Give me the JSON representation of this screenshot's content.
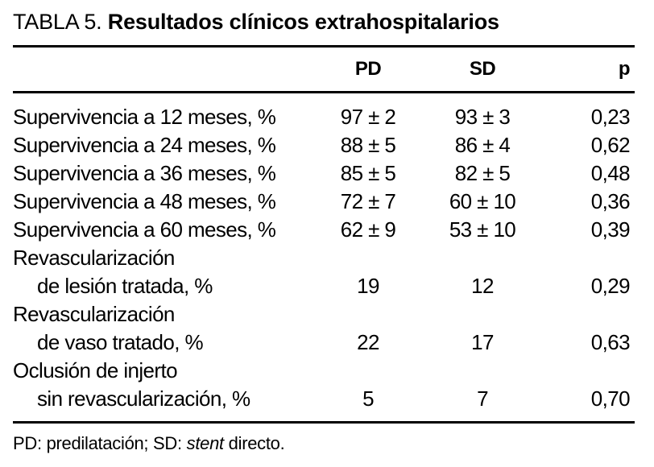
{
  "title": {
    "prefix": "TABLA 5. ",
    "bold_text": "Resultados clínicos extrahospitalarios"
  },
  "table": {
    "columns": {
      "pd": "PD",
      "sd": "SD",
      "p": "p"
    },
    "rows": [
      {
        "label": "Supervivencia a 12 meses, %",
        "indent": false,
        "pd": "97 ± 2",
        "sd": "93 ± 3",
        "p": "0,23"
      },
      {
        "label": "Supervivencia a 24 meses, %",
        "indent": false,
        "pd": "88 ± 5",
        "sd": "86 ± 4",
        "p": "0,62"
      },
      {
        "label": "Supervivencia a 36 meses, %",
        "indent": false,
        "pd": "85 ± 5",
        "sd": "82 ± 5",
        "p": "0,48"
      },
      {
        "label": "Supervivencia a 48 meses, %",
        "indent": false,
        "pd": "72 ± 7",
        "sd": "60 ± 10",
        "p": "0,36"
      },
      {
        "label": "Supervivencia a 60 meses, %",
        "indent": false,
        "pd": "62 ± 9",
        "sd": "53 ± 10",
        "p": "0,39"
      },
      {
        "label": "Revascularización",
        "indent": false,
        "pd": "",
        "sd": "",
        "p": ""
      },
      {
        "label": "de lesión tratada, %",
        "indent": true,
        "pd": "19",
        "sd": "12",
        "p": "0,29"
      },
      {
        "label": "Revascularización",
        "indent": false,
        "pd": "",
        "sd": "",
        "p": ""
      },
      {
        "label": "de vaso tratado, %",
        "indent": true,
        "pd": "22",
        "sd": "17",
        "p": "0,63"
      },
      {
        "label": "Oclusión de injerto",
        "indent": false,
        "pd": "",
        "sd": "",
        "p": ""
      },
      {
        "label": "sin revascularización, %",
        "indent": true,
        "pd": "5",
        "sd": "7",
        "p": "0,70"
      }
    ]
  },
  "footnote": {
    "prefix": "PD: predilatación; SD: ",
    "italic_word": "stent",
    "suffix": " directo."
  },
  "colors": {
    "text": "#000000",
    "background": "#ffffff",
    "rule": "#000000"
  },
  "chart_data": {
    "type": "table",
    "title": "TABLA 5. Resultados clínicos extrahospitalarios",
    "columns": [
      "",
      "PD",
      "SD",
      "p"
    ],
    "rows": [
      [
        "Supervivencia a 12 meses, %",
        "97 ± 2",
        "93 ± 3",
        "0,23"
      ],
      [
        "Supervivencia a 24 meses, %",
        "88 ± 5",
        "86 ± 4",
        "0,62"
      ],
      [
        "Supervivencia a 36 meses, %",
        "85 ± 5",
        "82 ± 5",
        "0,48"
      ],
      [
        "Supervivencia a 48 meses, %",
        "72 ± 7",
        "60 ± 10",
        "0,36"
      ],
      [
        "Supervivencia a 60 meses, %",
        "62 ± 9",
        "53 ± 10",
        "0,39"
      ],
      [
        "Revascularización de lesión tratada, %",
        "19",
        "12",
        "0,29"
      ],
      [
        "Revascularización de vaso tratado, %",
        "22",
        "17",
        "0,63"
      ],
      [
        "Oclusión de injerto sin revascularización, %",
        "5",
        "7",
        "0,70"
      ]
    ],
    "footnote": "PD: predilatación; SD: stent directo."
  }
}
